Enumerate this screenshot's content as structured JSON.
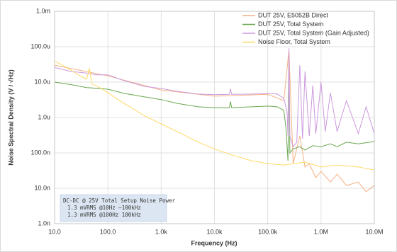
{
  "chart_data": {
    "type": "line",
    "x_label": "Frequency (Hz)",
    "y_label": "Noise Spectral Density (V / √Hz)",
    "xscale": "log",
    "yscale": "log",
    "grid": true,
    "legend": "upper right",
    "xlim": [
      10,
      10000000
    ],
    "ylim": [
      1e-09,
      0.001
    ],
    "xticks": [
      {
        "value": 10,
        "label": "10.0"
      },
      {
        "value": 100,
        "label": "100.0"
      },
      {
        "value": 1000,
        "label": "1.0k"
      },
      {
        "value": 10000,
        "label": "10.0k"
      },
      {
        "value": 100000,
        "label": "100.0k"
      },
      {
        "value": 1000000,
        "label": "1.0M"
      },
      {
        "value": 10000000,
        "label": "10.0M"
      }
    ],
    "yticks": [
      {
        "value": 1e-09,
        "label": "1.0n"
      },
      {
        "value": 1e-08,
        "label": "10.0n"
      },
      {
        "value": 1e-07,
        "label": "100.0n"
      },
      {
        "value": 1e-06,
        "label": "1.0u"
      },
      {
        "value": 1e-05,
        "label": "10.0u"
      },
      {
        "value": 0.0001,
        "label": "100.0u"
      },
      {
        "value": 0.001,
        "label": "1.0m"
      }
    ],
    "annotation": [
      "DC-DC @ 25V Total Setup Noise Power",
      "1.3 mVRMS @10Hz –100kHz",
      "1.3 mVRMS @100Hz 100kHz"
    ],
    "series": [
      {
        "name": "DUT 25V, E5052B Direct",
        "color": "#f4b183",
        "x": [
          10,
          100,
          1000,
          10000,
          100000,
          200000,
          250000,
          300000,
          400000,
          500000,
          600000,
          800000,
          1000000,
          1500000,
          2000000,
          3000000,
          5000000,
          7000000,
          10000000
        ],
        "values": [
          3e-05,
          1.5e-05,
          6e-06,
          4e-06,
          4.5e-06,
          3e-06,
          8e-05,
          5e-08,
          3e-07,
          4e-08,
          5e-08,
          2e-08,
          3e-08,
          1.5e-08,
          2.5e-08,
          1.2e-08,
          1.5e-08,
          8e-09,
          1.2e-08
        ]
      },
      {
        "name": "DUT 25V, Total System",
        "color": "#6aa84f",
        "x": [
          10,
          20,
          40,
          100,
          200,
          500,
          1000,
          2000,
          5000,
          10000,
          19000,
          20000,
          21000,
          50000,
          100000,
          150000,
          200000,
          220000,
          240000,
          250000,
          260000,
          300000,
          400000,
          500000,
          700000,
          1000000,
          1500000,
          2000000,
          3000000,
          5000000,
          10000000
        ],
        "values": [
          1e-05,
          8.5e-06,
          7e-06,
          6.3e-06,
          4.8e-06,
          3.8e-06,
          3.2e-06,
          2.5e-06,
          2e-06,
          1.9e-06,
          1.9e-06,
          2.8e-06,
          1.9e-06,
          2e-06,
          2.1e-06,
          2e-06,
          1.6e-06,
          5e-07,
          6e-08,
          3e-05,
          1e-07,
          1.3e-07,
          1.5e-07,
          1.2e-07,
          1.6e-07,
          1.5e-07,
          1.8e-07,
          1.5e-07,
          2e-07,
          1.8e-07,
          2.1e-07
        ]
      },
      {
        "name": "DUT 25V, Total System (Gain Adjusted)",
        "color": "#cc99dd",
        "x": [
          10,
          20,
          40,
          60,
          100,
          200,
          500,
          1000,
          2000,
          5000,
          10000,
          19000,
          20000,
          21000,
          50000,
          100000,
          150000,
          200000,
          230000,
          240000,
          250000,
          260000,
          300000,
          350000,
          400000,
          450000,
          500000,
          600000,
          700000,
          800000,
          1000000,
          1200000,
          1500000,
          2000000,
          3000000,
          5000000,
          7000000,
          10000000
        ],
        "values": [
          2.6e-05,
          2e-05,
          1.8e-05,
          1.6e-05,
          1.6e-05,
          1.1e-05,
          7.5e-06,
          6.6e-06,
          5.5e-06,
          4.6e-06,
          4.4e-06,
          4.5e-06,
          6.5e-06,
          4.5e-06,
          4.6e-06,
          4.8e-06,
          4.6e-06,
          3.5e-06,
          1.5e-06,
          3e-07,
          9e-05,
          3e-07,
          1.5e-07,
          2e-07,
          3e-05,
          2.5e-07,
          2e-05,
          3e-07,
          8e-06,
          3.5e-07,
          1e-05,
          4e-07,
          5e-06,
          4e-07,
          3e-06,
          3.5e-07,
          2e-06,
          3.5e-07
        ]
      },
      {
        "name": "Noise Floor, Total System",
        "color": "#ffd966",
        "x": [
          10,
          20,
          30,
          40,
          45,
          50,
          70,
          100,
          200,
          500,
          1000,
          2000,
          5000,
          10000,
          20000,
          50000,
          100000,
          200000,
          300000,
          500000,
          1000000,
          2000000,
          5000000,
          10000000
        ],
        "values": [
          4e-05,
          2.2e-05,
          1.5e-05,
          1.2e-05,
          2.5e-05,
          9e-06,
          7e-06,
          5e-06,
          2.5e-06,
          1.1e-06,
          6.6e-07,
          4e-07,
          2e-07,
          1.3e-07,
          9e-08,
          6e-08,
          5e-08,
          4.5e-08,
          5e-08,
          5.5e-08,
          4e-08,
          4.5e-08,
          4e-08,
          3.3e-08
        ]
      }
    ]
  }
}
